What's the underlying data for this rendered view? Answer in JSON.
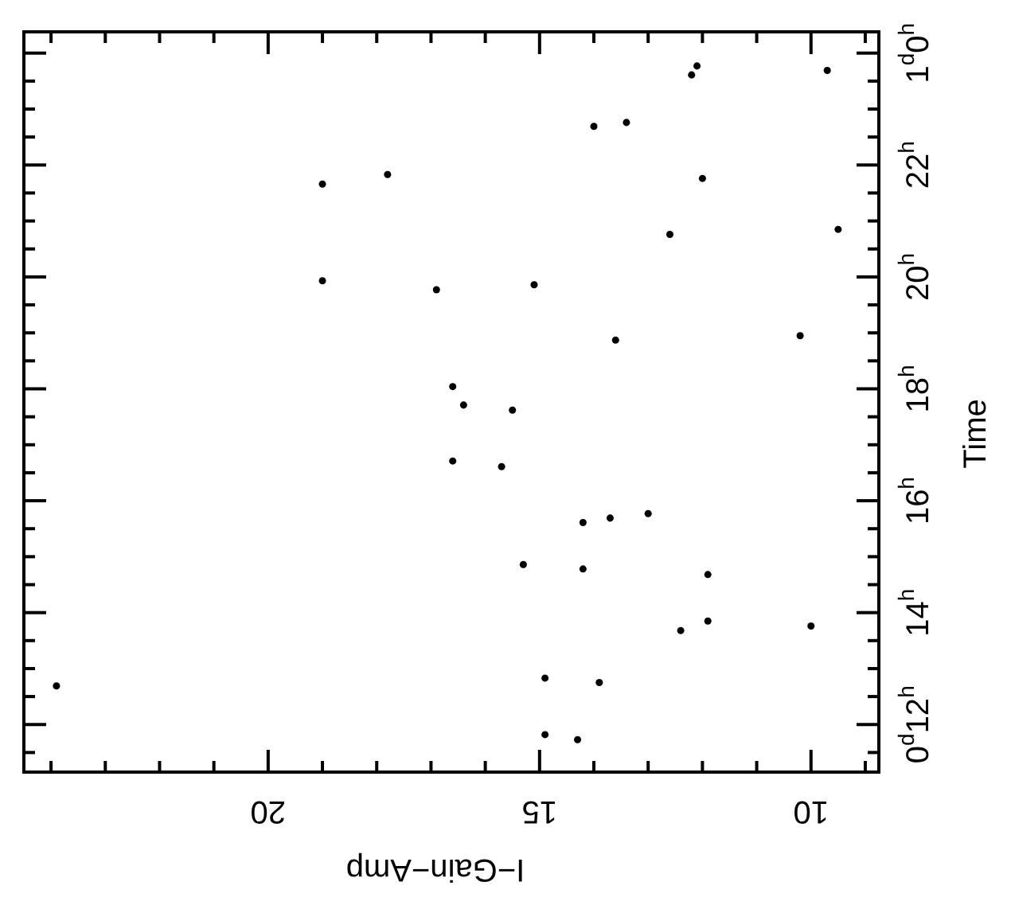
{
  "chart_data": {
    "type": "scatter",
    "xlabel": "I−Gain−Amp",
    "ylabel": "Time",
    "x": [
      12.1,
      12.2,
      14.0,
      13.4,
      19.0,
      17.8,
      12.0,
      12.6,
      19.0,
      16.9,
      15.1,
      13.6,
      16.6,
      16.4,
      15.5,
      16.6,
      15.7,
      14.2,
      13.7,
      13.0,
      15.3,
      14.2,
      11.9,
      12.4,
      11.9,
      14.9,
      13.9,
      14.9,
      14.3,
      9.7,
      9.5,
      10.2,
      10.0,
      23.9
    ],
    "series": [
      {
        "color": "#000000",
        "values": [
          23.77,
          23.61,
          22.69,
          22.76,
          21.66,
          21.83,
          21.76,
          20.76,
          19.93,
          19.77,
          19.86,
          18.87,
          18.04,
          17.71,
          17.62,
          16.71,
          16.61,
          15.61,
          15.69,
          15.77,
          14.86,
          14.78,
          14.68,
          13.68,
          13.85,
          12.83,
          12.75,
          11.82,
          11.73,
          23.69,
          20.85,
          18.95,
          13.76,
          12.69
        ]
      }
    ],
    "marker": "circle",
    "grid": false,
    "xlim": [
      24.5,
      8.75
    ],
    "xticks": [
      {
        "value": 9,
        "label": null
      },
      10,
      {
        "value": 11,
        "label": null
      },
      {
        "value": 12,
        "label": null
      },
      {
        "value": 13,
        "label": null
      },
      {
        "value": 14,
        "label": null
      },
      15,
      {
        "value": 16,
        "label": null
      },
      {
        "value": 17,
        "label": null
      },
      {
        "value": 18,
        "label": null
      },
      {
        "value": 19,
        "label": null
      },
      20,
      {
        "value": 21,
        "label": null
      },
      {
        "value": 22,
        "label": null
      },
      {
        "value": 23,
        "label": null
      },
      {
        "value": 24,
        "label": null
      }
    ],
    "ylim": [
      11.15,
      24.38
    ],
    "yticks": [
      {
        "value": 11.5,
        "label": null
      },
      {
        "value": 12,
        "label": "0$^{d}$12$^{h}$"
      },
      {
        "value": 12.5,
        "label": null
      },
      {
        "value": 13,
        "label": null
      },
      {
        "value": 13.5,
        "label": null
      },
      {
        "value": 14,
        "label": "14$^{h}$"
      },
      {
        "value": 14.5,
        "label": null
      },
      {
        "value": 15,
        "label": null
      },
      {
        "value": 15.5,
        "label": null
      },
      {
        "value": 16,
        "label": "16$^{h}$"
      },
      {
        "value": 16.5,
        "label": null
      },
      {
        "value": 17,
        "label": null
      },
      {
        "value": 17.5,
        "label": null
      },
      {
        "value": 18,
        "label": "18$^{h}$"
      },
      {
        "value": 18.5,
        "label": null
      },
      {
        "value": 19,
        "label": null
      },
      {
        "value": 19.5,
        "label": null
      },
      {
        "value": 20,
        "label": "20$^{h}$"
      },
      {
        "value": 20.5,
        "label": null
      },
      {
        "value": 21,
        "label": null
      },
      {
        "value": 21.5,
        "label": null
      },
      {
        "value": 22,
        "label": "22$^{h}$"
      },
      {
        "value": 22.5,
        "label": null
      },
      {
        "value": 23,
        "label": null
      },
      {
        "value": 23.5,
        "label": null
      },
      {
        "value": 24,
        "label": "1$^{d}$0$^{h}$"
      }
    ]
  }
}
